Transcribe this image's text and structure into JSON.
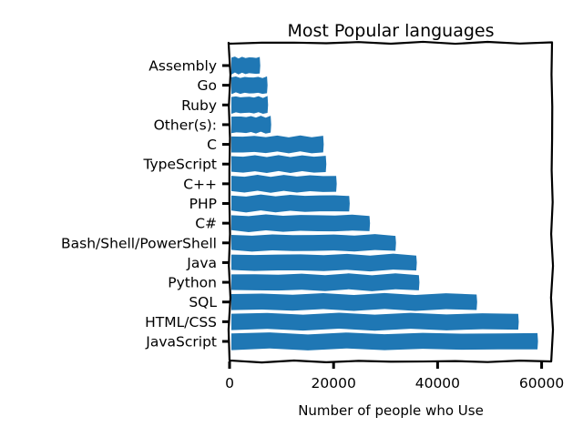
{
  "chart_data": {
    "type": "bar",
    "orientation": "horizontal",
    "style": "xkcd",
    "title": "Most Popular languages",
    "xlabel": "Number of people who Use",
    "ylabel": "",
    "xlim": [
      0,
      62000
    ],
    "xticks": [
      0,
      20000,
      40000,
      60000
    ],
    "grid": false,
    "categories": [
      "JavaScript",
      "HTML/CSS",
      "SQL",
      "Python",
      "Java",
      "Bash/Shell/PowerShell",
      "C#",
      "PHP",
      "C++",
      "TypeScript",
      "C",
      "Other(s):",
      "Ruby",
      "Go",
      "Assembly"
    ],
    "values": [
      59200,
      55500,
      47500,
      36400,
      35900,
      31900,
      26900,
      23000,
      20500,
      18500,
      18000,
      7900,
      7300,
      7200,
      5800
    ],
    "bar_color": "#1f77b4"
  }
}
